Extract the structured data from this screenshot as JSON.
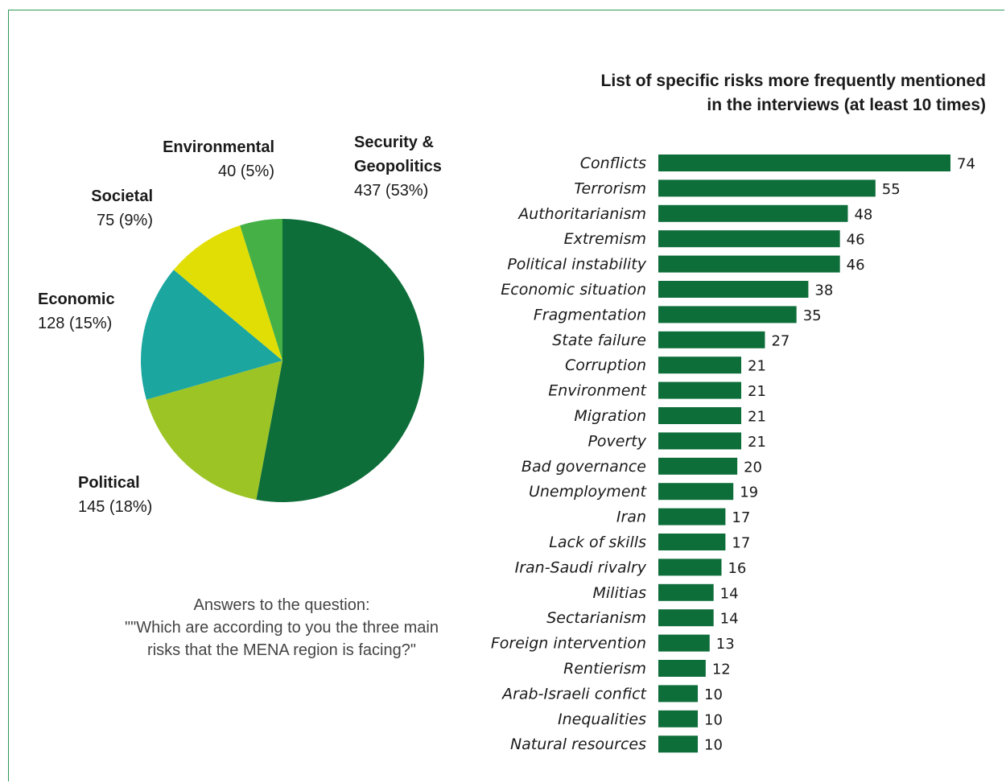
{
  "colors": {
    "frame": "#2e9a57",
    "bar": "#0e6e3a"
  },
  "chart_data": [
    {
      "type": "pie",
      "slices": [
        {
          "category": "Security & Geopolitics",
          "value": 437,
          "value_label": "437 (53%)",
          "color": "#0e6e3a"
        },
        {
          "category": "Political",
          "value": 145,
          "value_label": "145 (18%)",
          "color": "#9cc425"
        },
        {
          "category": "Economic",
          "value": 128,
          "value_label": "128 (15%)",
          "color": "#1ba6a0"
        },
        {
          "category": "Societal",
          "value": 75,
          "value_label": "75 (9%)",
          "color": "#e1de05"
        },
        {
          "category": "Environmental",
          "value": 40,
          "value_label": "40 (5%)",
          "color": "#45b046"
        }
      ],
      "caption": {
        "line1": "Answers to the question:",
        "line2": "\"\"Which are according to you the three main",
        "line3": "risks that the MENA region is facing?\""
      }
    },
    {
      "type": "bar",
      "orientation": "horizontal",
      "title_line1": "List of specific risks more frequently mentioned",
      "title_line2": "in the interviews (at least 10 times)",
      "categories": [
        "Conflicts",
        "Terrorism",
        "Authoritarianism",
        "Extremism",
        "Political instability",
        "Economic situation",
        "Fragmentation",
        "State failure",
        "Corruption",
        "Environment",
        "Migration",
        "Poverty",
        "Bad governance",
        "Unemployment",
        "Iran",
        "Lack of skills",
        "Iran-Saudi rivalry",
        "Militias",
        "Sectarianism",
        "Foreign intervention",
        "Rentierism",
        "Arab-Israeli confict",
        "Inequalities",
        "Natural resources"
      ],
      "values": [
        74,
        55,
        48,
        46,
        46,
        38,
        35,
        27,
        21,
        21,
        21,
        21,
        20,
        19,
        17,
        17,
        16,
        14,
        14,
        13,
        12,
        10,
        10,
        10
      ],
      "xlim": [
        0,
        74
      ],
      "grid": false,
      "legend": "none"
    }
  ]
}
